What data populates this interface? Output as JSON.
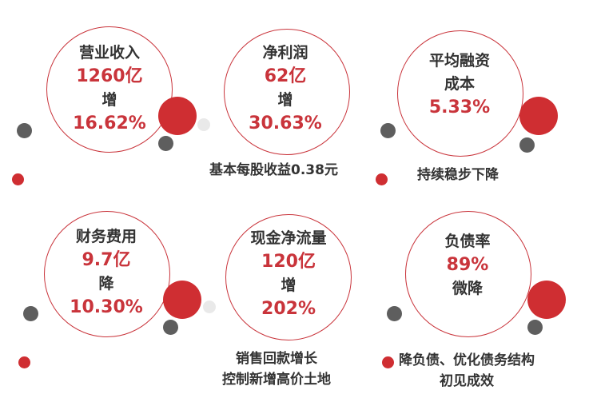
{
  "colors": {
    "accent": "#c9343b",
    "dark_dot": "#5e5e5e",
    "light_dot": "#e9e9e9",
    "text": "#333333"
  },
  "metrics": [
    {
      "label": "营业收入",
      "value": "1260亿",
      "trend": "增",
      "pct": "16.62%"
    },
    {
      "label": "净利润",
      "value": "62亿",
      "trend": "增",
      "pct": "30.63%"
    },
    {
      "label1": "平均融资",
      "label2": "成本",
      "value": "5.33%"
    },
    {
      "label": "财务费用",
      "value": "9.7亿",
      "trend": "降",
      "pct": "10.30%"
    },
    {
      "label": "现金净流量",
      "value": "120亿",
      "trend": "增",
      "pct": "202%"
    },
    {
      "label": "负债率",
      "value": "89%",
      "trend": "微降"
    }
  ],
  "notes": {
    "eps": "基本每股收益0.38元",
    "financing": "持续稳步下降",
    "cash_line1": "销售回款增长",
    "cash_line2": "控制新增高价土地",
    "debt_line1": "降负债、优化债务结构",
    "debt_line2": "初见成效"
  }
}
